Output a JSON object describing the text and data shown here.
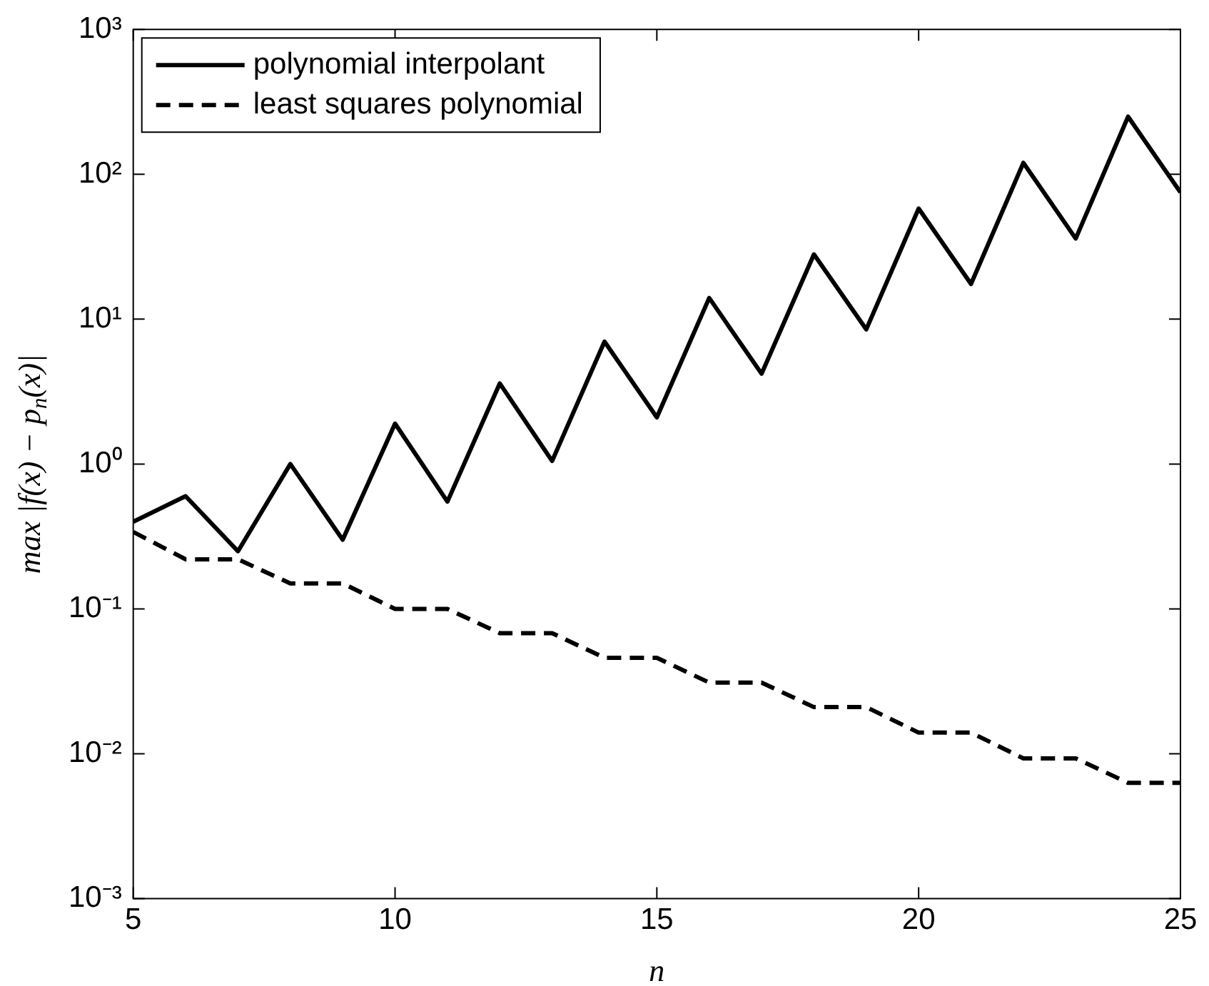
{
  "chart_data": {
    "type": "line",
    "xlabel": "n",
    "ylabel": "max |f(x) − p$_{n}$(x)|",
    "log": "y",
    "grid": false,
    "legend": "top left",
    "marker": "none",
    "x": [
      5,
      6,
      7,
      8,
      9,
      10,
      11,
      12,
      13,
      14,
      15,
      16,
      17,
      18,
      19,
      20,
      21,
      22,
      23,
      24,
      25
    ],
    "xlim": [
      5,
      25
    ],
    "xticks": [
      5,
      10,
      15,
      20,
      25
    ],
    "ylim": [
      0.001,
      1000
    ],
    "yticks": [
      {
        "value": 0.001,
        "label": "10⁻³"
      },
      {
        "value": 0.01,
        "label": "10⁻²"
      },
      {
        "value": 0.1,
        "label": "10⁻¹"
      },
      {
        "value": 1,
        "label": "10⁰"
      },
      {
        "value": 10,
        "label": "10¹"
      },
      {
        "value": 100,
        "label": "10²"
      },
      {
        "value": 1000,
        "label": "10³"
      }
    ],
    "series": [
      {
        "name": "polynomial interpolant",
        "color": "#000000",
        "line_style": "solid",
        "values": [
          0.4,
          0.6,
          0.25,
          1.0,
          0.3,
          1.9,
          0.55,
          3.6,
          1.05,
          7,
          2.1,
          14,
          4.2,
          28,
          8.5,
          58,
          17.5,
          120,
          36,
          250,
          75
        ]
      },
      {
        "name": "least squares polynomial",
        "color": "#000000",
        "line_style": "dashed",
        "values": [
          0.34,
          0.22,
          0.22,
          0.15,
          0.15,
          0.1,
          0.1,
          0.068,
          0.068,
          0.046,
          0.046,
          0.031,
          0.031,
          0.021,
          0.021,
          0.014,
          0.014,
          0.0093,
          0.0093,
          0.0063,
          0.0063
        ]
      }
    ]
  }
}
